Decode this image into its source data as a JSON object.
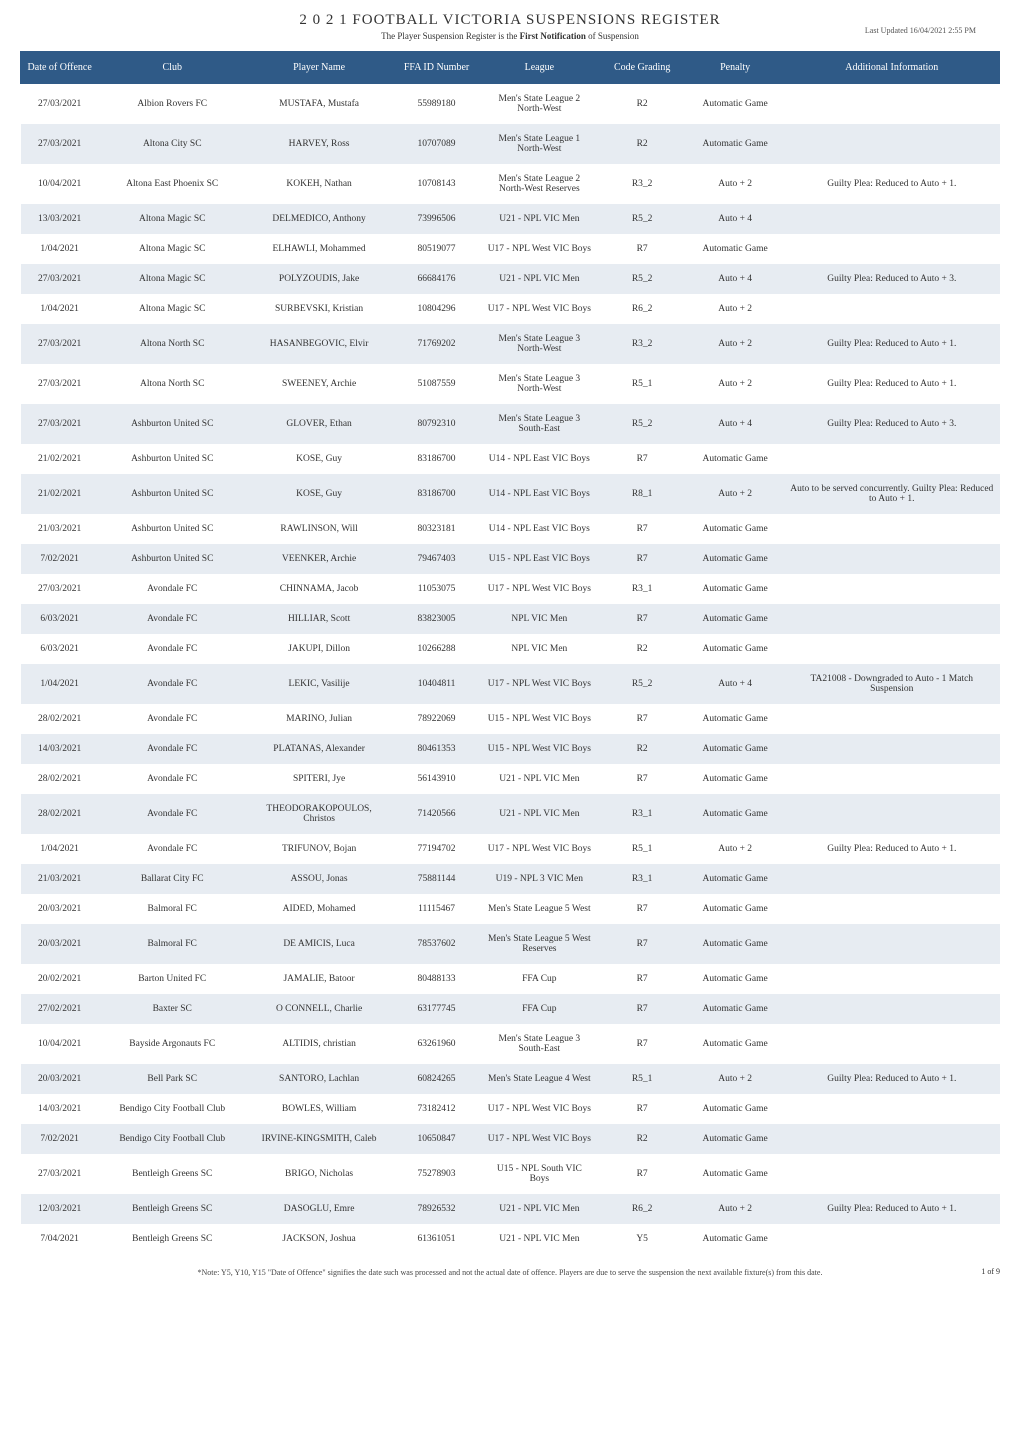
{
  "header": {
    "title": "2 0 2 1  FOOTBALL VICTORIA SUSPENSIONS REGISTER",
    "subtitle_prefix": "The Player Suspension Register is the ",
    "subtitle_bold": "First Notification",
    "subtitle_suffix": " of Suspension",
    "last_updated": "Last Updated 16/04/2021 2:55 PM"
  },
  "table": {
    "columns": [
      "Date of Offence",
      "Club",
      "Player Name",
      "FFA ID Number",
      "League",
      "Code Grading",
      "Penalty",
      "Additional Information"
    ],
    "column_widths_pct": [
      8,
      15,
      15,
      9,
      12,
      9,
      10,
      22
    ],
    "header_bg": "#2f5a87",
    "header_color": "#ffffff",
    "row_bg_odd": "#ffffff",
    "row_bg_even": "#e7ecf2",
    "font_family": "Georgia, 'Times New Roman', serif",
    "cell_fontsize": 9.5,
    "rows": [
      [
        "27/03/2021",
        "Albion Rovers FC",
        "MUSTAFA, Mustafa",
        "55989180",
        "Men's State League 2 North-West",
        "R2",
        "Automatic Game",
        ""
      ],
      [
        "27/03/2021",
        "Altona City SC",
        "HARVEY, Ross",
        "10707089",
        "Men's State League 1 North-West",
        "R2",
        "Automatic Game",
        ""
      ],
      [
        "10/04/2021",
        "Altona East Phoenix SC",
        "KOKEH, Nathan",
        "10708143",
        "Men's State League 2 North-West Reserves",
        "R3_2",
        "Auto + 2",
        "Guilty Plea: Reduced to Auto + 1."
      ],
      [
        "13/03/2021",
        "Altona Magic SC",
        "DELMEDICO, Anthony",
        "73996506",
        "U21 - NPL VIC Men",
        "R5_2",
        "Auto + 4",
        ""
      ],
      [
        "1/04/2021",
        "Altona Magic SC",
        "ELHAWLI, Mohammed",
        "80519077",
        "U17 - NPL West VIC Boys",
        "R7",
        "Automatic Game",
        ""
      ],
      [
        "27/03/2021",
        "Altona Magic SC",
        "POLYZOUDIS, Jake",
        "66684176",
        "U21 - NPL VIC Men",
        "R5_2",
        "Auto + 4",
        "Guilty Plea: Reduced to Auto + 3."
      ],
      [
        "1/04/2021",
        "Altona Magic SC",
        "SURBEVSKI, Kristian",
        "10804296",
        "U17 - NPL West VIC Boys",
        "R6_2",
        "Auto + 2",
        ""
      ],
      [
        "27/03/2021",
        "Altona North SC",
        "HASANBEGOVIC, Elvir",
        "71769202",
        "Men's State League 3 North-West",
        "R3_2",
        "Auto + 2",
        "Guilty Plea: Reduced to Auto + 1."
      ],
      [
        "27/03/2021",
        "Altona North SC",
        "SWEENEY, Archie",
        "51087559",
        "Men's State League 3 North-West",
        "R5_1",
        "Auto + 2",
        "Guilty Plea: Reduced to Auto + 1."
      ],
      [
        "27/03/2021",
        "Ashburton United SC",
        "GLOVER, Ethan",
        "80792310",
        "Men's State League 3 South-East",
        "R5_2",
        "Auto + 4",
        "Guilty Plea: Reduced to Auto + 3."
      ],
      [
        "21/02/2021",
        "Ashburton United SC",
        "KOSE, Guy",
        "83186700",
        "U14 - NPL East VIC Boys",
        "R7",
        "Automatic Game",
        ""
      ],
      [
        "21/02/2021",
        "Ashburton United SC",
        "KOSE, Guy",
        "83186700",
        "U14 - NPL East VIC Boys",
        "R8_1",
        "Auto + 2",
        "Auto to be served concurrently. Guilty Plea: Reduced to Auto + 1."
      ],
      [
        "21/03/2021",
        "Ashburton United SC",
        "RAWLINSON, Will",
        "80323181",
        "U14 - NPL East VIC Boys",
        "R7",
        "Automatic Game",
        ""
      ],
      [
        "7/02/2021",
        "Ashburton United SC",
        "VEENKER, Archie",
        "79467403",
        "U15 - NPL East VIC Boys",
        "R7",
        "Automatic Game",
        ""
      ],
      [
        "27/03/2021",
        "Avondale FC",
        "CHINNAMA, Jacob",
        "11053075",
        "U17 - NPL West VIC Boys",
        "R3_1",
        "Automatic Game",
        ""
      ],
      [
        "6/03/2021",
        "Avondale FC",
        "HILLIAR, Scott",
        "83823005",
        "NPL VIC Men",
        "R7",
        "Automatic Game",
        ""
      ],
      [
        "6/03/2021",
        "Avondale FC",
        "JAKUPI, Dillon",
        "10266288",
        "NPL VIC Men",
        "R2",
        "Automatic Game",
        ""
      ],
      [
        "1/04/2021",
        "Avondale FC",
        "LEKIC, Vasilije",
        "10404811",
        "U17 - NPL West VIC Boys",
        "R5_2",
        "Auto + 4",
        "TA21008 - Downgraded to Auto - 1 Match Suspension"
      ],
      [
        "28/02/2021",
        "Avondale FC",
        "MARINO, Julian",
        "78922069",
        "U15 - NPL West VIC Boys",
        "R7",
        "Automatic Game",
        ""
      ],
      [
        "14/03/2021",
        "Avondale FC",
        "PLATANAS, Alexander",
        "80461353",
        "U15 - NPL West VIC Boys",
        "R2",
        "Automatic Game",
        ""
      ],
      [
        "28/02/2021",
        "Avondale FC",
        "SPITERI, Jye",
        "56143910",
        "U21 - NPL VIC Men",
        "R7",
        "Automatic Game",
        ""
      ],
      [
        "28/02/2021",
        "Avondale FC",
        "THEODORAKOPOULOS, Christos",
        "71420566",
        "U21 - NPL VIC Men",
        "R3_1",
        "Automatic Game",
        ""
      ],
      [
        "1/04/2021",
        "Avondale FC",
        "TRIFUNOV, Bojan",
        "77194702",
        "U17 - NPL West VIC Boys",
        "R5_1",
        "Auto + 2",
        "Guilty Plea: Reduced to Auto + 1."
      ],
      [
        "21/03/2021",
        "Ballarat City FC",
        "ASSOU, Jonas",
        "75881144",
        "U19 - NPL 3 VIC Men",
        "R3_1",
        "Automatic Game",
        ""
      ],
      [
        "20/03/2021",
        "Balmoral FC",
        "AIDED, Mohamed",
        "11115467",
        "Men's State League 5 West",
        "R7",
        "Automatic Game",
        ""
      ],
      [
        "20/03/2021",
        "Balmoral FC",
        "DE AMICIS, Luca",
        "78537602",
        "Men's State League 5 West Reserves",
        "R7",
        "Automatic Game",
        ""
      ],
      [
        "20/02/2021",
        "Barton United FC",
        "JAMALIE, Batoor",
        "80488133",
        "FFA Cup",
        "R7",
        "Automatic Game",
        ""
      ],
      [
        "27/02/2021",
        "Baxter SC",
        "O CONNELL, Charlie",
        "63177745",
        "FFA Cup",
        "R7",
        "Automatic Game",
        ""
      ],
      [
        "10/04/2021",
        "Bayside Argonauts FC",
        "ALTIDIS, christian",
        "63261960",
        "Men's State League 3 South-East",
        "R7",
        "Automatic Game",
        ""
      ],
      [
        "20/03/2021",
        "Bell Park SC",
        "SANTORO, Lachlan",
        "60824265",
        "Men's State League 4 West",
        "R5_1",
        "Auto + 2",
        "Guilty Plea: Reduced to Auto + 1."
      ],
      [
        "14/03/2021",
        "Bendigo City Football Club",
        "BOWLES, William",
        "73182412",
        "U17 - NPL West VIC Boys",
        "R7",
        "Automatic Game",
        ""
      ],
      [
        "7/02/2021",
        "Bendigo City Football Club",
        "IRVINE-KINGSMITH, Caleb",
        "10650847",
        "U17 - NPL West VIC Boys",
        "R2",
        "Automatic Game",
        ""
      ],
      [
        "27/03/2021",
        "Bentleigh Greens SC",
        "BRIGO, Nicholas",
        "75278903",
        "U15 - NPL South VIC Boys",
        "R7",
        "Automatic Game",
        ""
      ],
      [
        "12/03/2021",
        "Bentleigh Greens SC",
        "DASOGLU, Emre",
        "78926532",
        "U21 - NPL VIC Men",
        "R6_2",
        "Auto + 2",
        "Guilty Plea: Reduced to Auto + 1."
      ],
      [
        "7/04/2021",
        "Bentleigh Greens SC",
        "JACKSON, Joshua",
        "61361051",
        "U21 - NPL VIC Men",
        "Y5",
        "Automatic Game",
        ""
      ]
    ]
  },
  "footer": {
    "note": "*Note: Y5, Y10, Y15 \"Date of Offence\" signifies the date such was processed and not the actual date of offence. Players are due to serve the suspension the next available fixture(s) from this date.",
    "page_num": "1 of 9"
  }
}
